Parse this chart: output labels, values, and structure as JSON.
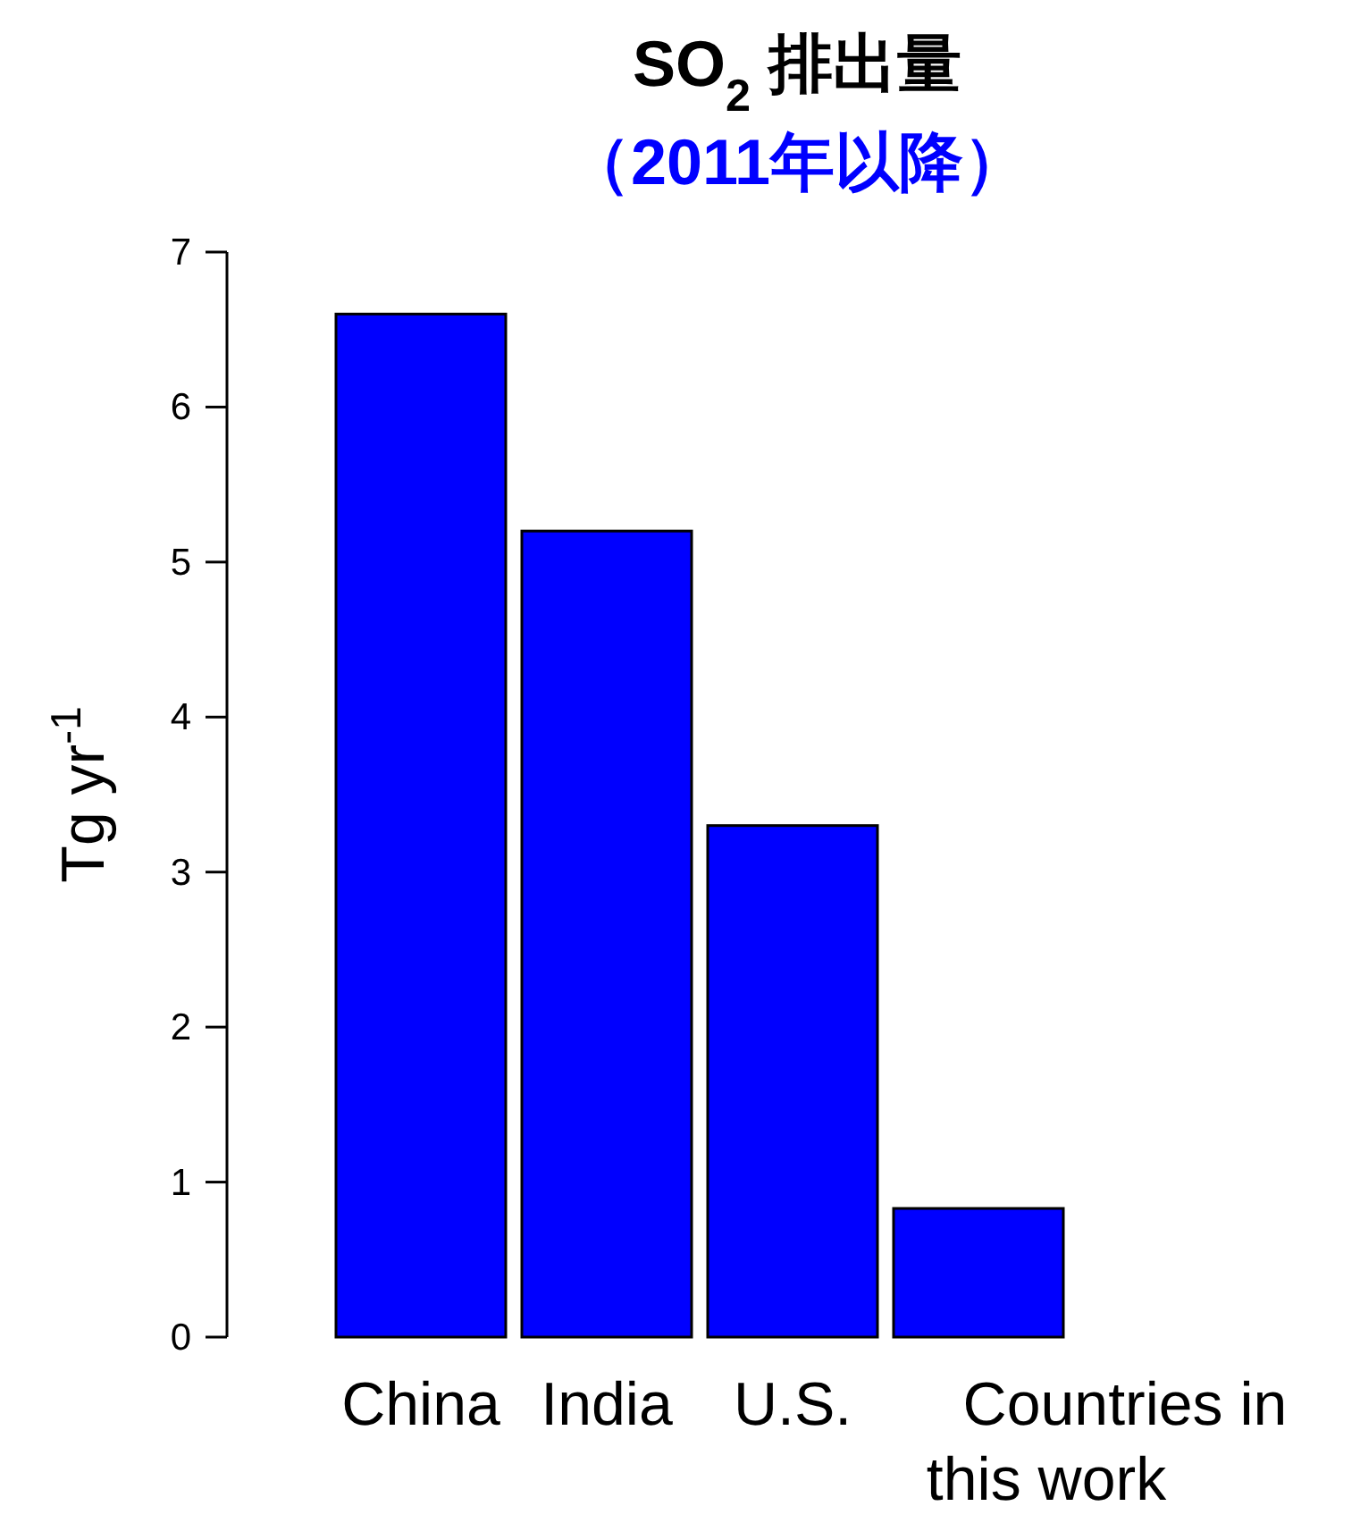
{
  "chart_data": {
    "type": "bar",
    "title": "SO$_{2}$ 排出量",
    "subtitle": "（2011年以降）",
    "ylabel": "Tg yr$^{-1}$",
    "categories": [
      "China",
      "India",
      "U.S.",
      "Countries in this work"
    ],
    "values": [
      6.6,
      5.2,
      3.3,
      0.83
    ],
    "color": "#0000ff",
    "ylim": [
      0,
      7
    ],
    "yticks": [
      0,
      1,
      2,
      3,
      4,
      5,
      6,
      7
    ]
  }
}
